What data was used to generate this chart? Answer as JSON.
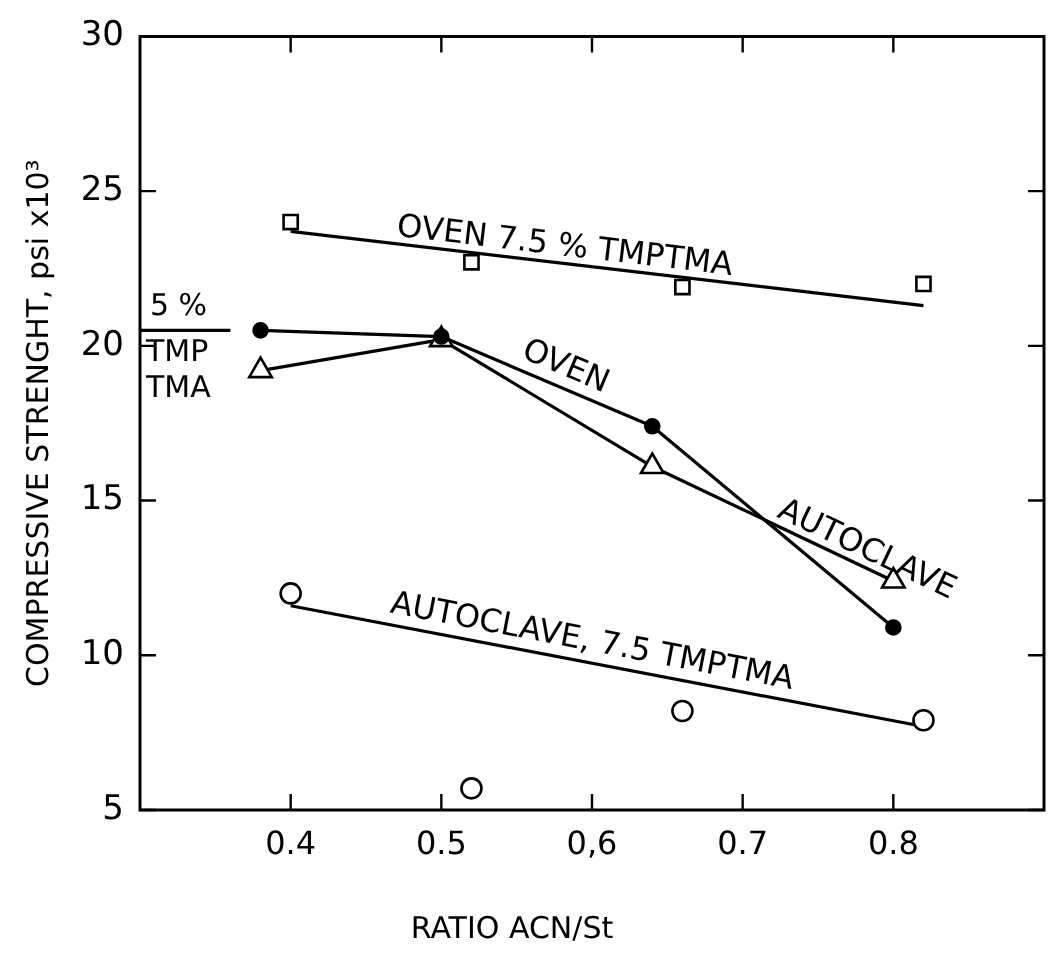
{
  "chart_data": {
    "type": "line",
    "xlabel": "RATIO ACN/St",
    "ylabel": "COMPRESSIVE STRENGHT, psi x10³",
    "xlim": [
      0.3,
      0.9
    ],
    "xticks": [
      0.4,
      0.5,
      {
        "value": 0.6,
        "label": "0,6"
      },
      0.7,
      0.8
    ],
    "ylim": [
      5,
      30
    ],
    "yticks": [
      5,
      10,
      15,
      20,
      25,
      30
    ],
    "grid": false,
    "legend": false,
    "series": [
      {
        "type": "scatter",
        "color": "#000000",
        "marker": "square",
        "x": [
          0.4,
          0.52,
          0.66,
          0.82
        ],
        "values": [
          24.0,
          22.7,
          21.9,
          22.0
        ]
      },
      {
        "type": "line",
        "name": "OVEN 7.5 % TMPTMA",
        "color": "#000000",
        "marker": "none",
        "x": [
          0.4,
          0.82
        ],
        "values": [
          23.7,
          21.3
        ]
      },
      {
        "type": "line",
        "name": "OVEN",
        "color": "#000000",
        "marker": "circle",
        "x": [
          0.38,
          0.5,
          0.64,
          0.8
        ],
        "values": [
          20.5,
          20.3,
          17.4,
          10.9
        ]
      },
      {
        "type": "line",
        "name": "AUTOCLAVE",
        "color": "#000000",
        "marker": "triangle",
        "x": [
          0.38,
          0.5,
          0.64,
          0.8
        ],
        "values": [
          19.2,
          20.2,
          16.1,
          12.4
        ]
      },
      {
        "type": "scatter",
        "color": "#000000",
        "marker": "circle",
        "x": [
          0.4,
          0.52,
          0.66,
          0.82
        ],
        "values": [
          12.0,
          5.7,
          8.2,
          7.9
        ]
      },
      {
        "type": "line",
        "name": "AUTOCLAVE, 7.5 TMPTMA",
        "color": "#000000",
        "marker": "none",
        "x": [
          0.4,
          0.82
        ],
        "values": [
          11.6,
          7.7
        ]
      }
    ],
    "ref_lines": [
      {
        "axis": "y",
        "value": 20.5
      }
    ],
    "annotations": [
      {
        "text": "5 %",
        "x": 0.3,
        "y": 20.5
      },
      {
        "text": "TMP TMA",
        "x": 0.3,
        "y": 20.5
      }
    ]
  }
}
